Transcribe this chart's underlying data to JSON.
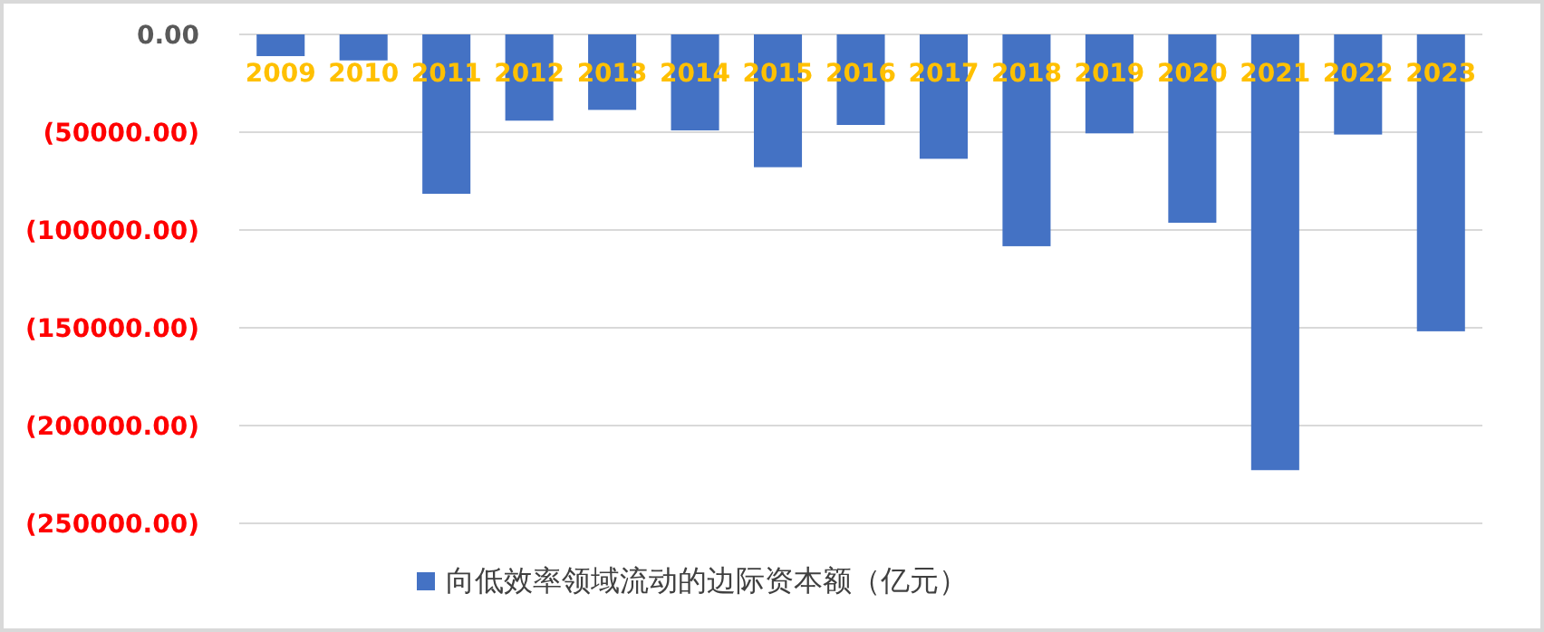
{
  "chart_data": {
    "type": "bar",
    "categories": [
      "2009",
      "2010",
      "2011",
      "2012",
      "2013",
      "2014",
      "2015",
      "2016",
      "2017",
      "2018",
      "2019",
      "2020",
      "2021",
      "2022",
      "2023"
    ],
    "series": [
      {
        "name": "向低效率领域流动的边际资本额（亿元）",
        "color": "#4472c4",
        "values": [
          -11100,
          -13300,
          -81500,
          -44100,
          -38600,
          -49100,
          -67900,
          -46300,
          -63600,
          -108300,
          -50600,
          -96300,
          -222800,
          -51200,
          -151800
        ]
      }
    ],
    "ylim": [
      -250000,
      0
    ],
    "yticks": [
      {
        "value": 0,
        "label": "0.00"
      },
      {
        "value": -50000,
        "label": "(50000.00)"
      },
      {
        "value": -100000,
        "label": "(100000.00)"
      },
      {
        "value": -150000,
        "label": "(150000.00)"
      },
      {
        "value": -200000,
        "label": "(200000.00)"
      },
      {
        "value": -250000,
        "label": "(250000.00)"
      }
    ],
    "grid": "y",
    "legend": "bottom"
  }
}
